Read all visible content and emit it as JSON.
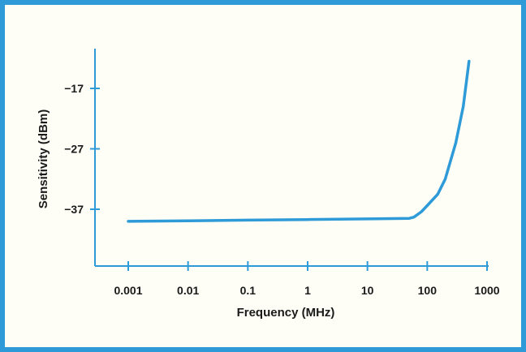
{
  "chart_data": {
    "type": "line",
    "title": "",
    "xlabel": "Frequency (MHz)",
    "ylabel": "Sensitivity (dBm)",
    "x_scale": "log",
    "xlim": [
      0.0005,
      1000
    ],
    "ylim": [
      -47,
      -10
    ],
    "x_ticks": [
      0.001,
      0.01,
      0.1,
      1,
      10,
      100,
      1000
    ],
    "x_tick_labels": [
      "0.001",
      "0.01",
      "0.1",
      "1",
      "10",
      "100",
      "1000"
    ],
    "y_ticks": [
      -17,
      -27,
      -37
    ],
    "y_tick_labels": [
      "−17",
      "−27",
      "−37"
    ],
    "grid": false,
    "series": [
      {
        "name": "",
        "color": "#2e9bd8",
        "x": [
          0.001,
          0.01,
          0.1,
          1,
          10,
          50,
          60,
          80,
          100,
          150,
          200,
          300,
          400,
          500
        ],
        "y": [
          -39.0,
          -38.9,
          -38.8,
          -38.7,
          -38.6,
          -38.5,
          -38.3,
          -37.4,
          -36.4,
          -34.5,
          -32.0,
          -26.0,
          -20.0,
          -12.5
        ]
      }
    ]
  },
  "colors": {
    "frame": "#2e9bd8",
    "axis": "#2e9bd8",
    "line": "#2e9bd8",
    "background": "#fffef6"
  }
}
